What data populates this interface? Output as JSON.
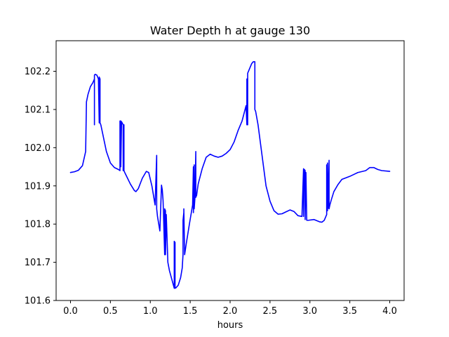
{
  "chart_data": {
    "type": "line",
    "title": "Water Depth h at gauge 130",
    "xlabel": "hours",
    "ylabel": "",
    "xlim": [
      -0.18,
      4.18
    ],
    "ylim": [
      101.6,
      102.28
    ],
    "xticks": [
      0.0,
      0.5,
      1.0,
      1.5,
      2.0,
      2.5,
      3.0,
      3.5,
      4.0
    ],
    "xtick_labels": [
      "0.0",
      "0.5",
      "1.0",
      "1.5",
      "2.0",
      "2.5",
      "3.0",
      "3.5",
      "4.0"
    ],
    "yticks": [
      101.6,
      101.7,
      101.8,
      101.9,
      102.0,
      102.1,
      102.2
    ],
    "ytick_labels": [
      "101.6",
      "101.7",
      "101.8",
      "101.9",
      "102.0",
      "102.1",
      "102.2"
    ],
    "grid": false,
    "series": [
      {
        "color": "#0000ff",
        "x": [
          0.0,
          0.05,
          0.1,
          0.15,
          0.19,
          0.2,
          0.22,
          0.25,
          0.28,
          0.3,
          0.3,
          0.3,
          0.31,
          0.33,
          0.35,
          0.36,
          0.36,
          0.37,
          0.37,
          0.38,
          0.4,
          0.45,
          0.5,
          0.55,
          0.6,
          0.62,
          0.62,
          0.63,
          0.63,
          0.64,
          0.66,
          0.66,
          0.67,
          0.67,
          0.68,
          0.75,
          0.8,
          0.82,
          0.85,
          0.9,
          0.95,
          0.98,
          1.02,
          1.06,
          1.08,
          1.08,
          1.09,
          1.12,
          1.14,
          1.14,
          1.15,
          1.16,
          1.18,
          1.18,
          1.19,
          1.19,
          1.2,
          1.22,
          1.24,
          1.27,
          1.3,
          1.3,
          1.31,
          1.31,
          1.32,
          1.35,
          1.38,
          1.4,
          1.41,
          1.41,
          1.42,
          1.42,
          1.43,
          1.45,
          1.49,
          1.53,
          1.54,
          1.54,
          1.55,
          1.55,
          1.56,
          1.57,
          1.57,
          1.58,
          1.6,
          1.65,
          1.7,
          1.75,
          1.8,
          1.85,
          1.9,
          1.95,
          2.0,
          2.05,
          2.1,
          2.15,
          2.2,
          2.21,
          2.21,
          2.22,
          2.22,
          2.23,
          2.25,
          2.27,
          2.29,
          2.31,
          2.31,
          2.32,
          2.35,
          2.4,
          2.45,
          2.5,
          2.55,
          2.6,
          2.65,
          2.7,
          2.75,
          2.8,
          2.85,
          2.9,
          2.92,
          2.92,
          2.93,
          2.94,
          2.94,
          2.95,
          2.96,
          2.98,
          3.05,
          3.12,
          3.15,
          3.18,
          3.21,
          3.21,
          3.22,
          3.22,
          3.23,
          3.24,
          3.24,
          3.25,
          3.27,
          3.3,
          3.35,
          3.4,
          3.5,
          3.6,
          3.7,
          3.75,
          3.8,
          3.85,
          3.9,
          4.0
        ],
        "y": [
          101.935,
          101.937,
          101.941,
          101.953,
          101.99,
          102.12,
          102.14,
          102.16,
          102.17,
          102.18,
          102.06,
          102.19,
          102.192,
          102.19,
          102.18,
          102.065,
          102.185,
          102.18,
          102.065,
          102.06,
          102.04,
          101.99,
          101.96,
          101.948,
          101.943,
          101.94,
          102.07,
          102.07,
          101.95,
          102.068,
          102.06,
          101.94,
          102.06,
          101.94,
          101.935,
          101.905,
          101.888,
          101.885,
          101.893,
          101.92,
          101.938,
          101.935,
          101.9,
          101.85,
          101.98,
          101.84,
          101.82,
          101.782,
          101.9,
          101.902,
          101.89,
          101.862,
          101.72,
          101.84,
          101.835,
          101.72,
          101.825,
          101.7,
          101.678,
          101.655,
          101.632,
          101.755,
          101.752,
          101.632,
          101.633,
          101.64,
          101.66,
          101.685,
          101.72,
          101.81,
          101.83,
          101.84,
          101.72,
          101.748,
          101.8,
          101.85,
          101.95,
          101.83,
          101.955,
          101.84,
          101.87,
          101.99,
          101.87,
          101.875,
          101.905,
          101.945,
          101.975,
          101.983,
          101.978,
          101.975,
          101.978,
          101.985,
          101.995,
          102.015,
          102.045,
          102.07,
          102.11,
          102.06,
          102.18,
          102.06,
          102.195,
          102.2,
          102.21,
          102.22,
          102.225,
          102.225,
          102.1,
          102.095,
          102.06,
          101.98,
          101.9,
          101.86,
          101.835,
          101.826,
          101.827,
          101.832,
          101.837,
          101.833,
          101.822,
          101.82,
          101.945,
          101.82,
          101.943,
          101.94,
          101.812,
          101.935,
          101.81,
          101.81,
          101.812,
          101.806,
          101.805,
          101.81,
          101.825,
          101.955,
          101.835,
          101.96,
          101.842,
          101.967,
          101.84,
          101.85,
          101.865,
          101.885,
          101.903,
          101.917,
          101.925,
          101.935,
          101.94,
          101.948,
          101.948,
          101.943,
          101.94,
          101.938
        ]
      }
    ]
  }
}
